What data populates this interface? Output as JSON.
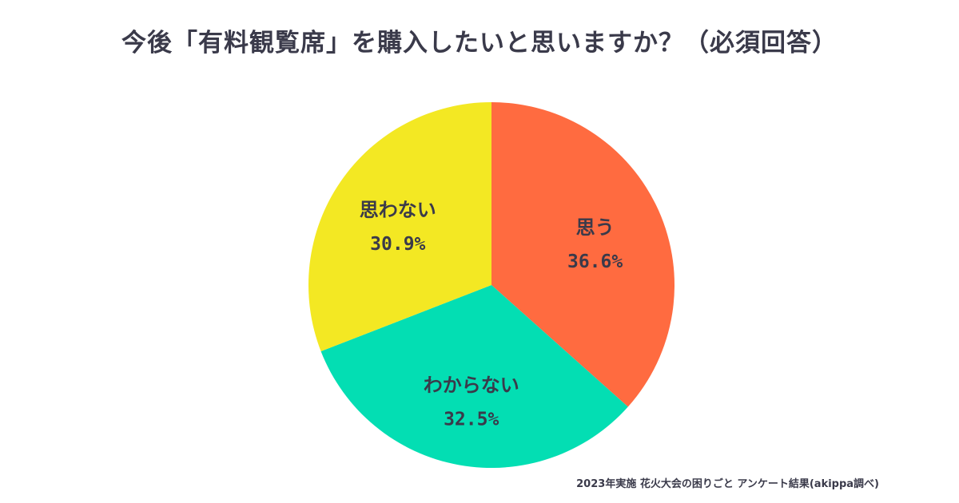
{
  "title": "今後「有料観覧席」を購入したいと思いますか？（必須回答）",
  "source": "2023年実施 花火大会の困りごと アンケート結果(akippa調べ)",
  "chart_data": {
    "type": "pie",
    "title": "今後「有料観覧席」を購入したいと思いますか？（必須回答）",
    "unit": "%",
    "slices": [
      {
        "label": "思う",
        "value": 36.6,
        "value_label": "36.6%",
        "color": "#ff6b40"
      },
      {
        "label": "わからない",
        "value": 32.5,
        "value_label": "32.5%",
        "color": "#03deb3"
      },
      {
        "label": "思わない",
        "value": 30.9,
        "value_label": "30.9%",
        "color": "#f3e823"
      }
    ],
    "start": "12 o'clock",
    "direction": "clockwise",
    "label_color": "#3a3a4a"
  }
}
